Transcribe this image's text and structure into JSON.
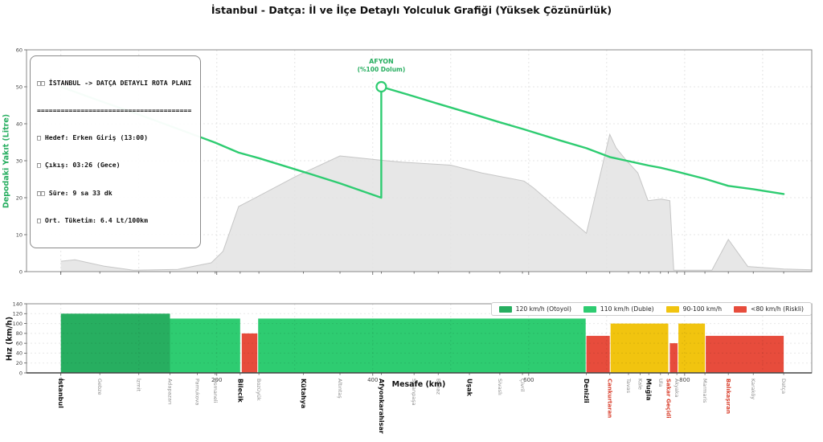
{
  "title": "İstanbul - Datça: İl ve İlçe Detaylı Yolculuk Grafiği (Yüksek Çözünürlük)",
  "colors": {
    "fuel_line": "#2ecc71",
    "annotation_green": "#27ae60",
    "elevation_fill": "#e3e3e3",
    "elevation_edge": "#c6c6c6",
    "otoyol": "#27ae60",
    "duble": "#2ecc71",
    "orta": "#f1c40f",
    "riskli": "#e74c3c",
    "critical_label": "#d9402e"
  },
  "chart_data": [
    {
      "type": "line",
      "ylabel": "Depodaki Yakıt (Litre)",
      "ylim": [
        0,
        60
      ],
      "yticks": [
        0,
        10,
        20,
        30,
        40,
        50,
        60
      ],
      "xlim": [
        -44,
        963
      ],
      "grid": true,
      "info_box": [
        "□□ İSTANBUL -> DATÇA DETAYLI ROTA PLANI",
        "=======================================",
        "□ Hedef: Erken Giriş (13:00)",
        "□ Çıkış: 03:26 (Gece)",
        "□□ Süre: 9 sa 33 dk",
        "□ Ort. Tüketim: 6.4 Lt/100km"
      ],
      "annotation": {
        "lines": [
          "AFYON",
          "(%100 Dolum)"
        ],
        "km": 411,
        "fuel_after": 50,
        "fuel_before": 20
      },
      "fuel_line_points": [
        [
          0,
          50
        ],
        [
          50,
          46.2
        ],
        [
          100,
          42.5
        ],
        [
          140,
          39.4
        ],
        [
          175,
          36.7
        ],
        [
          198,
          34.9
        ],
        [
          228,
          32.2
        ],
        [
          254,
          30.7
        ],
        [
          311,
          27.0
        ],
        [
          358,
          23.9
        ],
        [
          411,
          20
        ],
        [
          411,
          50
        ],
        [
          453,
          47.4
        ],
        [
          484,
          45.4
        ],
        [
          524,
          42.9
        ],
        [
          563,
          40.4
        ],
        [
          592,
          38.6
        ],
        [
          640,
          35.5
        ],
        [
          674,
          33.4
        ],
        [
          704,
          31
        ],
        [
          728,
          29.9
        ],
        [
          743,
          29.2
        ],
        [
          754,
          28.7
        ],
        [
          769,
          28.1
        ],
        [
          779,
          27.6
        ],
        [
          791,
          27
        ],
        [
          826,
          25.1
        ],
        [
          856,
          23.2
        ],
        [
          888,
          22.3
        ],
        [
          927,
          21
        ]
      ],
      "elevation_profile_axis_units": [
        [
          0,
          2.8
        ],
        [
          18,
          3.2
        ],
        [
          55,
          1.5
        ],
        [
          93,
          0.4
        ],
        [
          150,
          0.6
        ],
        [
          193,
          2.4
        ],
        [
          208,
          5.5
        ],
        [
          228,
          17.6
        ],
        [
          248,
          19.8
        ],
        [
          300,
          25.6
        ],
        [
          358,
          31.3
        ],
        [
          412,
          30.1
        ],
        [
          437,
          29.6
        ],
        [
          500,
          28.8
        ],
        [
          540,
          26.7
        ],
        [
          594,
          24.5
        ],
        [
          606,
          22.7
        ],
        [
          640,
          16.5
        ],
        [
          674,
          10.4
        ],
        [
          704,
          37.1
        ],
        [
          712,
          33.5
        ],
        [
          724,
          30.4
        ],
        [
          740,
          26.7
        ],
        [
          753,
          19.2
        ],
        [
          770,
          19.6
        ],
        [
          781,
          19.2
        ],
        [
          786,
          0.4
        ],
        [
          835,
          0.4
        ],
        [
          856,
          8.7
        ],
        [
          881,
          1.4
        ],
        [
          927,
          0.7
        ],
        [
          963,
          0.5
        ]
      ]
    },
    {
      "type": "bar",
      "ylabel": "Hız (km/h)",
      "xlabel": "Mesafe (km)",
      "ylim": [
        0,
        140
      ],
      "yticks": [
        0,
        20,
        40,
        60,
        80,
        100,
        120,
        140
      ],
      "xticks": [
        0,
        200,
        400,
        600,
        800
      ],
      "legend": [
        {
          "label": "120 km/h (Otoyol)",
          "category": "otoyol"
        },
        {
          "label": "110 km/h (Duble)",
          "category": "duble"
        },
        {
          "label": "90-100 km/h",
          "category": "orta"
        },
        {
          "label": "<80 km/h (Riskli)",
          "category": "riskli"
        }
      ],
      "segments": [
        {
          "from": 0,
          "to": 140,
          "speed": 120,
          "category": "otoyol"
        },
        {
          "from": 140,
          "to": 230,
          "speed": 110,
          "category": "duble"
        },
        {
          "from": 232,
          "to": 252,
          "speed": 80,
          "category": "riskli"
        },
        {
          "from": 253,
          "to": 673,
          "speed": 110,
          "category": "duble"
        },
        {
          "from": 674,
          "to": 704,
          "speed": 75,
          "category": "riskli"
        },
        {
          "from": 705,
          "to": 779,
          "speed": 100,
          "category": "orta"
        },
        {
          "from": 781,
          "to": 791,
          "speed": 60,
          "category": "riskli"
        },
        {
          "from": 792,
          "to": 826,
          "speed": 100,
          "category": "orta"
        },
        {
          "from": 827,
          "to": 927,
          "speed": 75,
          "category": "riskli"
        }
      ],
      "cities": [
        {
          "name": "İstanbul",
          "km": 0,
          "style": "major"
        },
        {
          "name": "Gebze",
          "km": 50,
          "style": "minor"
        },
        {
          "name": "İzmit",
          "km": 100,
          "style": "minor"
        },
        {
          "name": "Adapazarı",
          "km": 140,
          "style": "minor"
        },
        {
          "name": "Pamukova",
          "km": 175,
          "style": "minor"
        },
        {
          "name": "Osmaneli",
          "km": 198,
          "style": "minor"
        },
        {
          "name": "Bilecik",
          "km": 230,
          "style": "major"
        },
        {
          "name": "Bozüyük",
          "km": 254,
          "style": "minor"
        },
        {
          "name": "Kütahya",
          "km": 311,
          "style": "major"
        },
        {
          "name": "Altıntaş",
          "km": 358,
          "style": "minor"
        },
        {
          "name": "Afyonkarahisar",
          "km": 411,
          "style": "major"
        },
        {
          "name": "Sinanpaşa",
          "km": 453,
          "style": "minor"
        },
        {
          "name": "Banaz",
          "km": 484,
          "style": "minor"
        },
        {
          "name": "Uşak",
          "km": 524,
          "style": "major"
        },
        {
          "name": "Sivaslı",
          "km": 563,
          "style": "minor"
        },
        {
          "name": "Çivril",
          "km": 592,
          "style": "minor"
        },
        {
          "name": "Denizli",
          "km": 674,
          "style": "major"
        },
        {
          "name": "Cankurtaran",
          "km": 704,
          "style": "critical"
        },
        {
          "name": "Tavas",
          "km": 728,
          "style": "minor"
        },
        {
          "name": "Kale",
          "km": 743,
          "style": "minor"
        },
        {
          "name": "Muğla",
          "km": 754,
          "style": "major"
        },
        {
          "name": "Ula",
          "km": 769,
          "style": "minor"
        },
        {
          "name": "Sakar Geçidi",
          "km": 779,
          "style": "critical"
        },
        {
          "name": "Akyaka",
          "km": 790,
          "style": "minor"
        },
        {
          "name": "Marmaris",
          "km": 826,
          "style": "minor"
        },
        {
          "name": "Balıkaşıran",
          "km": 856,
          "style": "critical"
        },
        {
          "name": "Karaköy",
          "km": 888,
          "style": "minor"
        },
        {
          "name": "Datça",
          "km": 927,
          "style": "minor"
        }
      ]
    }
  ]
}
